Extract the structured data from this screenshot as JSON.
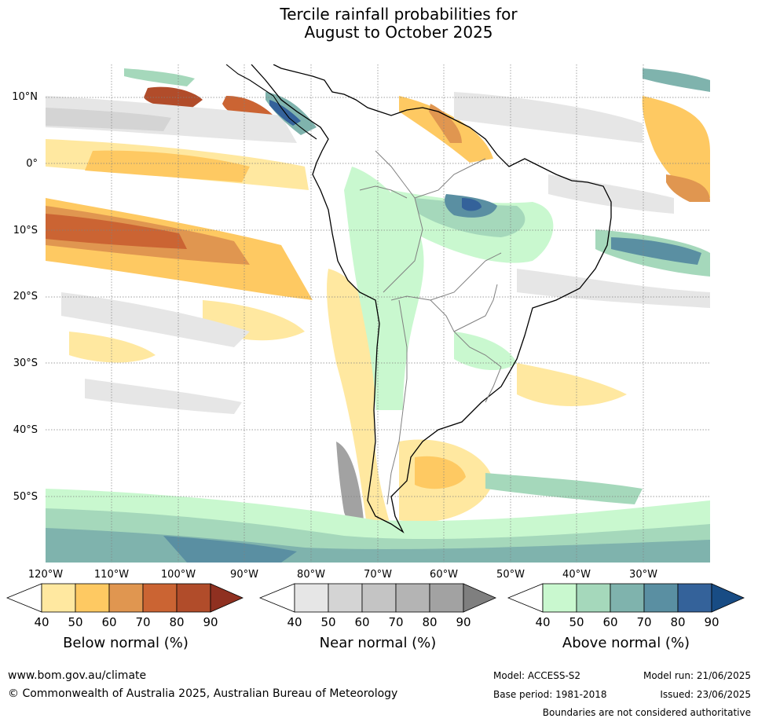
{
  "title_line1": "Tercile rainfall probabilities for",
  "title_line2": "August to October 2025",
  "lat_labels": [
    "10°N",
    "0°",
    "10°S",
    "20°S",
    "30°S",
    "40°S",
    "50°S"
  ],
  "lon_labels": [
    "120°W",
    "110°W",
    "100°W",
    "90°W",
    "80°W",
    "70°W",
    "60°W",
    "50°W",
    "40°W",
    "30°W"
  ],
  "colorbars": [
    {
      "title": "Below normal (%)",
      "ticks": [
        "40",
        "50",
        "60",
        "70",
        "80",
        "90"
      ],
      "colors": [
        "#ffffff",
        "#ffe8a0",
        "#fec962",
        "#e09650",
        "#cb6433",
        "#b14c2a",
        "#8f3020"
      ]
    },
    {
      "title": "Near normal (%)",
      "ticks": [
        "40",
        "50",
        "60",
        "70",
        "80",
        "90"
      ],
      "colors": [
        "#ffffff",
        "#e6e6e6",
        "#d4d4d4",
        "#c4c4c4",
        "#b4b4b4",
        "#a2a2a2",
        "#7f7f7f"
      ]
    },
    {
      "title": "Above normal (%)",
      "ticks": [
        "40",
        "50",
        "60",
        "70",
        "80",
        "90"
      ],
      "colors": [
        "#ffffff",
        "#c9f8cf",
        "#a5d8bb",
        "#7fb3ad",
        "#5a8fa2",
        "#34629a",
        "#184c84"
      ]
    }
  ],
  "footer": {
    "website": "www.bom.gov.au/climate",
    "copyright": "© Commonwealth of Australia 2025, Australian Bureau of Meteorology",
    "model": "Model: ACCESS-S2",
    "base_period": "Base period: 1981-2018",
    "model_run": "Model run: 21/06/2025",
    "issued": "Issued: 23/06/2025",
    "disclaimer": "Boundaries are not considered authoritative"
  }
}
